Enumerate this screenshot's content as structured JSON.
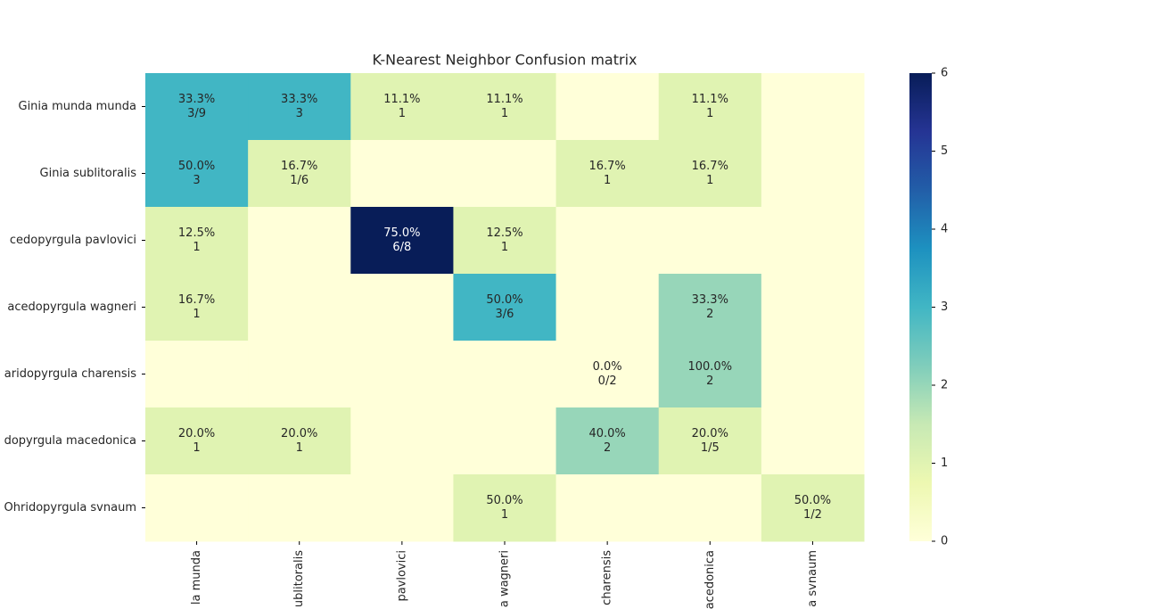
{
  "chart_data": {
    "type": "heatmap",
    "title": "K-Nearest Neighbor Confusion matrix",
    "y_labels": [
      "Ginia munda munda",
      "Ginia sublitoralis",
      "cedopyrgula pavlovici",
      "acedopyrgula wagneri",
      "aridopyrgula charensis",
      "dopyrgula macedonica",
      "Ohridopyrgula svnaum"
    ],
    "x_labels": [
      "la munda",
      "ublitoralis",
      "pavlovici",
      "a wagneri",
      "charensis",
      "acedonica",
      "a svnaum"
    ],
    "values": [
      [
        3,
        3,
        1,
        1,
        0,
        1,
        0
      ],
      [
        3,
        1,
        0,
        0,
        1,
        1,
        0
      ],
      [
        1,
        0,
        6,
        1,
        0,
        0,
        0
      ],
      [
        1,
        0,
        0,
        3,
        0,
        2,
        0
      ],
      [
        0,
        0,
        0,
        0,
        0,
        2,
        0
      ],
      [
        1,
        1,
        0,
        0,
        2,
        1,
        0
      ],
      [
        0,
        0,
        0,
        1,
        0,
        0,
        1
      ]
    ],
    "value_labels": [
      [
        "3/9",
        "3",
        "1",
        "1",
        null,
        "1",
        null
      ],
      [
        "3",
        "1/6",
        null,
        null,
        "1",
        "1",
        null
      ],
      [
        "1",
        null,
        "6/8",
        "1",
        null,
        null,
        null
      ],
      [
        "1",
        null,
        null,
        "3/6",
        null,
        "2",
        null
      ],
      [
        null,
        null,
        null,
        null,
        "0/2",
        "2",
        null
      ],
      [
        "1",
        "1",
        null,
        null,
        "2",
        "1/5",
        null
      ],
      [
        null,
        null,
        null,
        "1",
        null,
        null,
        "1/2"
      ]
    ],
    "percent_labels": [
      [
        "33.3%",
        "33.3%",
        "11.1%",
        "11.1%",
        null,
        "11.1%",
        null
      ],
      [
        "50.0%",
        "16.7%",
        null,
        null,
        "16.7%",
        "16.7%",
        null
      ],
      [
        "12.5%",
        null,
        "75.0%",
        "12.5%",
        null,
        null,
        null
      ],
      [
        "16.7%",
        null,
        null,
        "50.0%",
        null,
        "33.3%",
        null
      ],
      [
        null,
        null,
        null,
        null,
        "0.0%",
        "100.0%",
        null
      ],
      [
        "20.0%",
        "20.0%",
        null,
        null,
        "40.0%",
        "20.0%",
        null
      ],
      [
        null,
        null,
        null,
        "50.0%",
        null,
        null,
        "50.0%"
      ]
    ],
    "colormap": "YlGnBu",
    "zlim": [
      0,
      6
    ],
    "zticks": [
      0,
      1,
      2,
      3,
      4,
      5,
      6
    ]
  }
}
